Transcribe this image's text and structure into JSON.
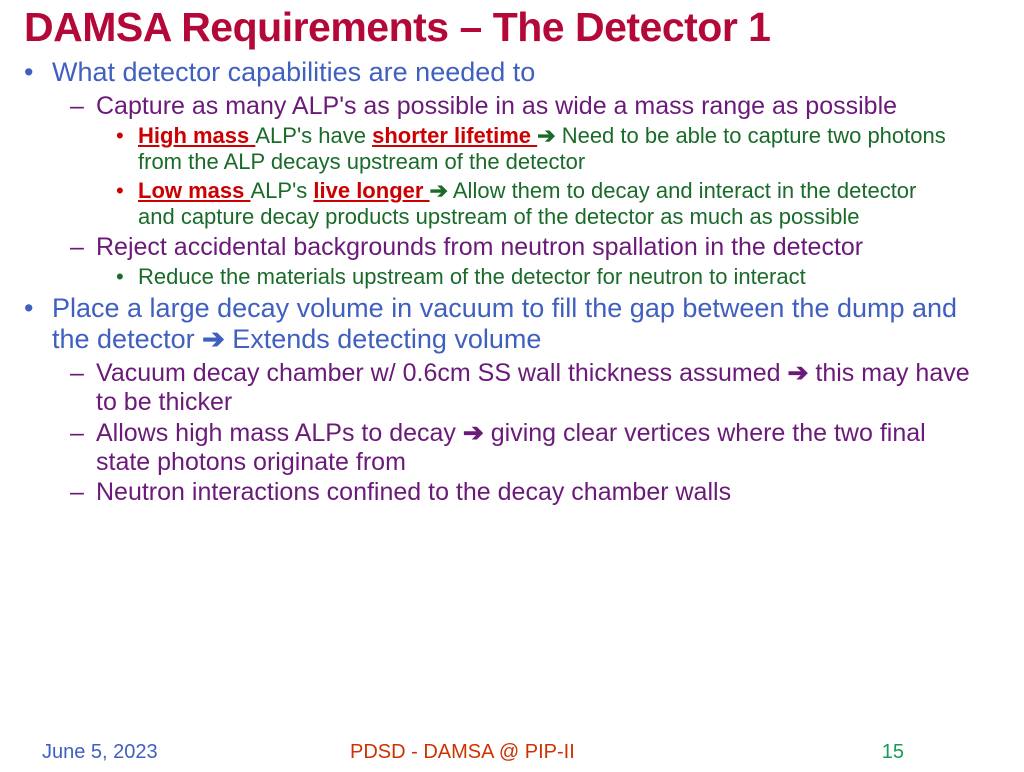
{
  "title": "DAMSA Requirements – The Detector 1",
  "colors": {
    "title": "#b30838",
    "l1": "#4060c0",
    "l2": "#6b1a7a",
    "l3_bullet_red": "#cc0000",
    "l3_text": "#1a6b2a",
    "highlight": "#cc0000",
    "footer_date": "#4060c0",
    "footer_mid": "#cc3300",
    "footer_pg": "#1a9b5a",
    "background": "#ffffff"
  },
  "fonts": {
    "title_size": 41,
    "l1_size": 27,
    "l2_size": 25,
    "l3_size": 22,
    "footer_size": 20
  },
  "bullets": {
    "l1": {
      "items": [
        {
          "text": "What detector capabilities are needed to",
          "sub": [
            {
              "text": "Capture as many ALP's as possible in as wide a mass range as possible",
              "sub": [
                {
                  "bullet_color": "red",
                  "segs": [
                    {
                      "t": "High mass ",
                      "cls": "redbold"
                    },
                    {
                      "t": "ALP's have "
                    },
                    {
                      "t": "shorter lifetime ",
                      "cls": "redbold"
                    },
                    {
                      "t": "➔",
                      "cls": "arrow"
                    },
                    {
                      "t": " Need to be able to capture two photons from the ALP decays upstream of the detector"
                    }
                  ]
                },
                {
                  "bullet_color": "red",
                  "segs": [
                    {
                      "t": "Low mass ",
                      "cls": "redbold"
                    },
                    {
                      "t": "ALP's "
                    },
                    {
                      "t": "live longer ",
                      "cls": "redbold"
                    },
                    {
                      "t": "➔",
                      "cls": "arrow"
                    },
                    {
                      "t": " Allow them to decay and interact in the detector and capture decay products upstream of the detector as much as possible"
                    }
                  ]
                }
              ]
            },
            {
              "text": "Reject accidental backgrounds from neutron spallation in the detector",
              "sub": [
                {
                  "bullet_color": "green",
                  "segs": [
                    {
                      "t": "Reduce the materials upstream of the detector for neutron to interact"
                    }
                  ]
                }
              ]
            }
          ]
        },
        {
          "segs": [
            {
              "t": "Place a large decay volume in vacuum to fill the gap between the dump and the detector "
            },
            {
              "t": "➔",
              "cls": "arrow"
            },
            {
              "t": " Extends detecting volume"
            }
          ],
          "sub": [
            {
              "segs": [
                {
                  "t": "Vacuum decay chamber w/ 0.6cm SS wall thickness assumed "
                },
                {
                  "t": "➔",
                  "cls": "arrow"
                },
                {
                  "t": " this may have to be thicker"
                }
              ]
            },
            {
              "segs": [
                {
                  "t": "Allows high mass ALPs to decay "
                },
                {
                  "t": "➔",
                  "cls": "arrow"
                },
                {
                  "t": " giving clear vertices where the two final state photons originate from"
                }
              ]
            },
            {
              "text": "Neutron interactions confined to the decay chamber walls"
            }
          ]
        }
      ]
    }
  },
  "footer": {
    "date": "June 5, 2023",
    "mid": "PDSD - DAMSA @ PIP-II",
    "page": "15"
  }
}
